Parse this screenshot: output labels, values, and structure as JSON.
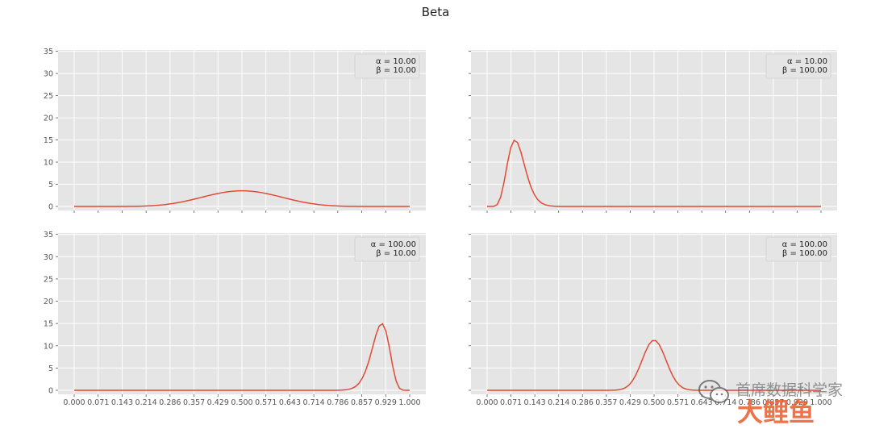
{
  "title": "Beta",
  "colors": {
    "line": "#e24a33",
    "panel_bg": "#e5e5e5",
    "grid": "#ffffff",
    "tick_text": "#555555"
  },
  "chart_data": [
    {
      "type": "line",
      "legend": [
        "α = 10.00",
        "β = 10.00"
      ],
      "legend_placement": "top-right",
      "alpha": 10,
      "beta": 10,
      "ylim": [
        0,
        35
      ],
      "yticks": [
        "0",
        "5",
        "10",
        "15",
        "20",
        "25",
        "30",
        "35"
      ],
      "xlim": [
        0,
        1
      ],
      "xticks": [],
      "grid": true,
      "series": [
        {
          "x_range": [
            0,
            1
          ],
          "y_peak": 3.5,
          "peak_x": 0.5
        }
      ]
    },
    {
      "type": "line",
      "legend": [
        "α = 10.00",
        "β = 100.00"
      ],
      "legend_placement": "top-right",
      "alpha": 10,
      "beta": 100,
      "ylim": [
        0,
        35
      ],
      "yticks": [],
      "xlim": [
        0,
        1
      ],
      "xticks": [],
      "grid": true,
      "series": [
        {
          "x_range": [
            0,
            1
          ],
          "y_peak": 14.8,
          "peak_x": 0.083
        }
      ]
    },
    {
      "type": "line",
      "legend": [
        "α = 100.00",
        "β = 10.00"
      ],
      "legend_placement": "top-right",
      "alpha": 100,
      "beta": 10,
      "ylim": [
        0,
        35
      ],
      "yticks": [
        "0",
        "5",
        "10",
        "15",
        "20",
        "25",
        "30",
        "35"
      ],
      "xlim": [
        0,
        1
      ],
      "xticks": [
        "0.000",
        "0.071",
        "0.143",
        "0.214",
        "0.286",
        "0.357",
        "0.429",
        "0.500",
        "0.571",
        "0.643",
        "0.714",
        "0.786",
        "0.857",
        "0.929",
        "1.000"
      ],
      "grid": true,
      "series": [
        {
          "x_range": [
            0,
            1
          ],
          "y_peak": 14.8,
          "peak_x": 0.917
        }
      ]
    },
    {
      "type": "line",
      "legend": [
        "α = 100.00",
        "β = 100.00"
      ],
      "legend_placement": "top-right",
      "alpha": 100,
      "beta": 100,
      "ylim": [
        0,
        35
      ],
      "yticks": [],
      "xlim": [
        0,
        1
      ],
      "xticks": [
        "0.000",
        "0.071",
        "0.143",
        "0.214",
        "0.286",
        "0.357",
        "0.429",
        "0.500",
        "0.571",
        "0.643",
        "0.714",
        "0.786",
        "0.857",
        "0.929",
        "1.000"
      ],
      "grid": true,
      "series": [
        {
          "x_range": [
            0,
            1
          ],
          "y_peak": 11.3,
          "peak_x": 0.5
        }
      ]
    }
  ],
  "watermark": {
    "line1": "首席数据科学家",
    "line2": "大鲤鱼"
  }
}
